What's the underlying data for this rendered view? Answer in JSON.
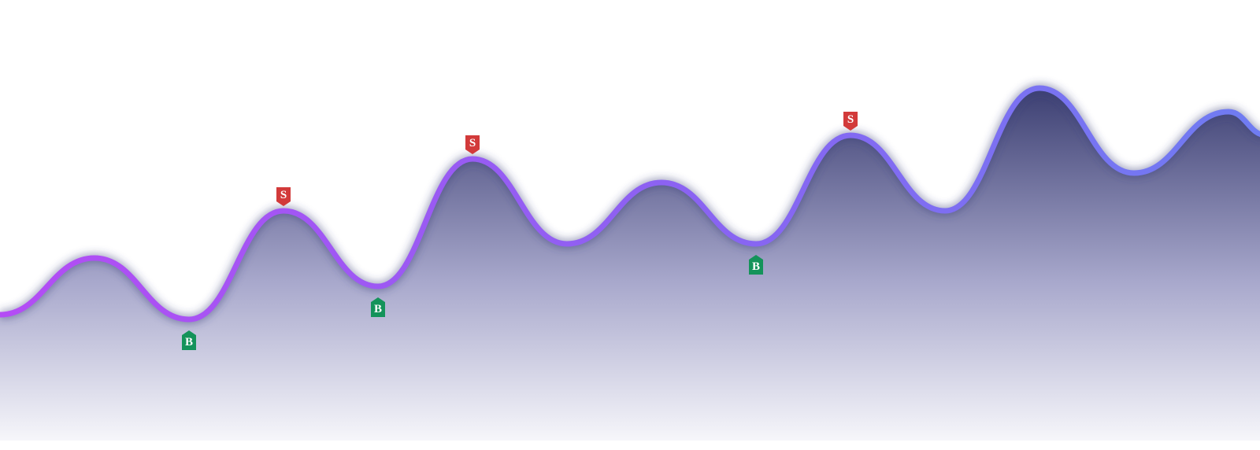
{
  "chart_data": {
    "type": "area",
    "title": "",
    "xlabel": "",
    "ylabel": "",
    "grid": false,
    "legend": "none",
    "xlim": [
      0,
      13.4
    ],
    "ylim": [
      0,
      100
    ],
    "points": [
      {
        "x": 0.0,
        "y": 42
      },
      {
        "x": 1.0,
        "y": 54
      },
      {
        "x": 2.0,
        "y": 41
      },
      {
        "x": 3.0,
        "y": 64
      },
      {
        "x": 4.0,
        "y": 48
      },
      {
        "x": 5.0,
        "y": 75
      },
      {
        "x": 6.0,
        "y": 57
      },
      {
        "x": 7.0,
        "y": 70
      },
      {
        "x": 8.0,
        "y": 57
      },
      {
        "x": 9.0,
        "y": 80
      },
      {
        "x": 10.0,
        "y": 64
      },
      {
        "x": 11.0,
        "y": 90
      },
      {
        "x": 12.0,
        "y": 72
      },
      {
        "x": 13.0,
        "y": 85
      },
      {
        "x": 13.4,
        "y": 80
      }
    ],
    "markers": [
      {
        "type": "buy",
        "label": "B",
        "x": 2.0,
        "y": 41
      },
      {
        "type": "sell",
        "label": "S",
        "x": 3.0,
        "y": 64
      },
      {
        "type": "buy",
        "label": "B",
        "x": 4.0,
        "y": 48
      },
      {
        "type": "sell",
        "label": "S",
        "x": 5.0,
        "y": 75
      },
      {
        "type": "buy",
        "label": "B",
        "x": 8.0,
        "y": 57
      },
      {
        "type": "sell",
        "label": "S",
        "x": 9.0,
        "y": 80
      }
    ],
    "colors": {
      "line_start": "#b44cf5",
      "line_mid": "#8a63f2",
      "line_end": "#6f7cf2",
      "area_top": "#3c3f72",
      "area_mid": "#a8a8cc",
      "area_bottom": "#f6f6fa",
      "buy": "#14935a",
      "sell": "#d23a3a",
      "marker_text": "#ffffff"
    }
  }
}
